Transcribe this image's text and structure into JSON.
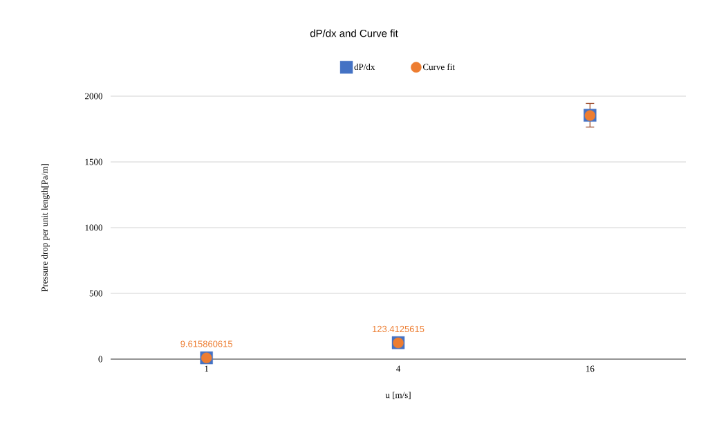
{
  "chart_data": {
    "type": "scatter",
    "title": "dP/dx and Curve fit",
    "xlabel": "u [m/s]",
    "ylabel": "Pressure drop per unit length[Pa/m]",
    "categories": [
      "1",
      "4",
      "16"
    ],
    "series": [
      {
        "name": "dP/dx",
        "color": "#4472c4",
        "marker": "square",
        "values": [
          10,
          125,
          1855
        ],
        "errors": [
          null,
          null,
          90
        ]
      },
      {
        "name": "Curve fit",
        "color": "#ed7d31",
        "marker": "circle",
        "values": [
          9.615860615,
          123.4125615,
          1853
        ],
        "value_labels": [
          "9.615860615",
          "123.4125615",
          null
        ]
      }
    ],
    "ylim": [
      0,
      2000
    ],
    "yticks": [
      0,
      500,
      1000,
      1500,
      2000
    ],
    "grid": "y",
    "legend": "top"
  }
}
